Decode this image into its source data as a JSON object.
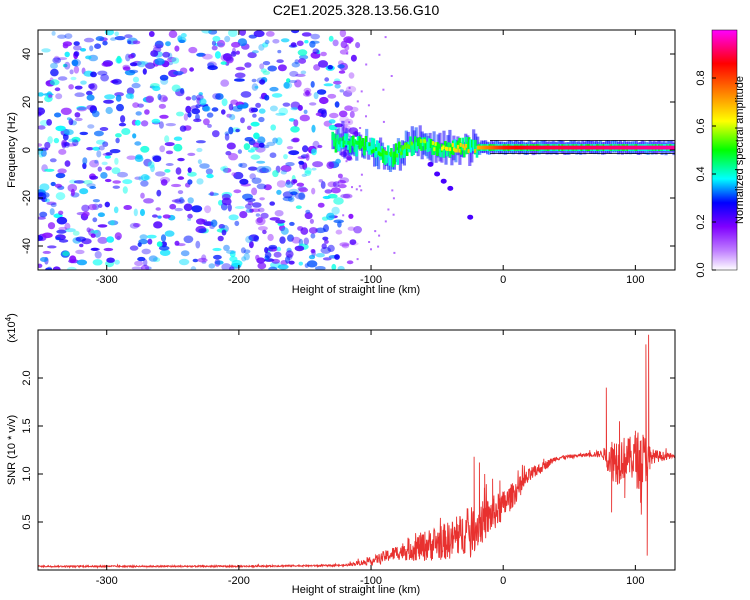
{
  "title": "C2E1.2025.328.13.56.G10",
  "chart_data": [
    {
      "type": "heatmap",
      "title": "C2E1.2025.328.13.56.G10",
      "xlabel": "Height of straight line (km)",
      "ylabel": "Frequency (Hz)",
      "xlim": [
        -352,
        130
      ],
      "ylim": [
        -50,
        50
      ],
      "xticks": [
        -300,
        -200,
        -100,
        0,
        100
      ],
      "yticks": [
        -40,
        -20,
        0,
        20,
        40
      ],
      "colorbar": {
        "label": "Normalized spectral amplitude",
        "range": [
          0.0,
          1.0
        ],
        "ticks": [
          0.0,
          0.2,
          0.4,
          0.6,
          0.8
        ],
        "colormap": [
          "#ffffff",
          "#8000ff",
          "#0000ff",
          "#00ffff",
          "#00ff00",
          "#ffff00",
          "#ff8000",
          "#ff0000",
          "#ff00ff"
        ]
      },
      "features": {
        "noise_region_x": [
          -352,
          -122
        ],
        "noise_amplitude_range": [
          0.1,
          0.4
        ],
        "signal_line_x": [
          -130,
          130
        ],
        "signal_line_freq": [
          [
            -130,
            4
          ],
          [
            -110,
            2
          ],
          [
            -95,
            0
          ],
          [
            -85,
            -3
          ],
          [
            -75,
            1
          ],
          [
            -65,
            3
          ],
          [
            -55,
            2
          ],
          [
            -45,
            0
          ],
          [
            -35,
            1
          ],
          [
            -20,
            1
          ],
          [
            -10,
            1
          ],
          [
            0,
            1
          ],
          [
            20,
            1
          ],
          [
            60,
            1
          ],
          [
            100,
            1
          ],
          [
            130,
            1
          ]
        ],
        "signal_line_amplitude": [
          [
            -130,
            0.45
          ],
          [
            -100,
            0.5
          ],
          [
            -70,
            0.55
          ],
          [
            -40,
            0.65
          ],
          [
            -20,
            0.7
          ],
          [
            0,
            0.85
          ],
          [
            20,
            0.9
          ],
          [
            130,
            0.95
          ]
        ],
        "branch_points": [
          [
            -55,
            -6
          ],
          [
            -50,
            -10
          ],
          [
            -45,
            -13
          ],
          [
            -40,
            -16
          ],
          [
            -25,
            -28
          ]
        ]
      }
    },
    {
      "type": "line",
      "xlabel": "Height of straight line (km)",
      "ylabel": "SNR (10 * v/v)",
      "ylabel_scale": "(x10",
      "ylabel_scale_exp": "4",
      "ylabel_scale_close": ")",
      "xlim": [
        -352,
        130
      ],
      "ylim": [
        0,
        2.5
      ],
      "xticks": [
        -300,
        -200,
        -100,
        0,
        100
      ],
      "yticks": [
        0.5,
        1.0,
        1.5,
        2.0
      ],
      "series": [
        {
          "color": "#e8312f",
          "envelope_x": [
            -352,
            -200,
            -120,
            -100,
            -80,
            -60,
            -40,
            -20,
            0,
            20,
            40,
            60,
            75,
            85,
            95,
            105,
            112,
            130
          ],
          "envelope_y": [
            0.04,
            0.04,
            0.05,
            0.1,
            0.2,
            0.28,
            0.35,
            0.5,
            0.7,
            1.0,
            1.17,
            1.2,
            1.22,
            1.2,
            1.22,
            1.2,
            1.2,
            1.19
          ],
          "noise_y": [
            0.01,
            0.01,
            0.01,
            0.05,
            0.1,
            0.2,
            0.25,
            0.3,
            0.2,
            0.1,
            0.03,
            0.02,
            0.05,
            0.35,
            0.25,
            0.45,
            0.1,
            0.02
          ],
          "spikes": [
            [
              -22,
              1.18
            ],
            [
              -18,
              1.12
            ],
            [
              -14,
              1.0
            ],
            [
              -8,
              0.95
            ],
            [
              78,
              1.9
            ],
            [
              82,
              0.6
            ],
            [
              88,
              1.55
            ],
            [
              92,
              0.75
            ],
            [
              100,
              1.45
            ],
            [
              104,
              0.7
            ],
            [
              108,
              2.35
            ],
            [
              109,
              0.15
            ],
            [
              110,
              2.45
            ],
            [
              111,
              1.05
            ]
          ]
        }
      ]
    }
  ]
}
